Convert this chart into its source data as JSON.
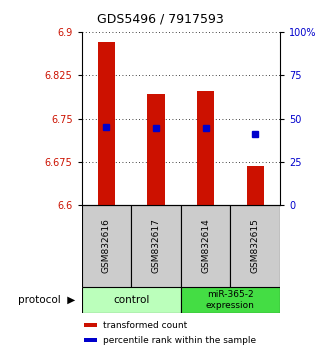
{
  "title": "GDS5496 / 7917593",
  "samples": [
    "GSM832616",
    "GSM832617",
    "GSM832614",
    "GSM832615"
  ],
  "bar_tops": [
    6.882,
    6.793,
    6.798,
    6.668
  ],
  "bar_bottom": 6.6,
  "percentile_values": [
    6.736,
    6.734,
    6.733,
    6.723
  ],
  "ylim": [
    6.6,
    6.9
  ],
  "yticks_left": [
    6.6,
    6.675,
    6.75,
    6.825,
    6.9
  ],
  "yticks_right": [
    0,
    25,
    50,
    75,
    100
  ],
  "ytick_right_labels": [
    "0",
    "25",
    "50",
    "75",
    "100%"
  ],
  "bar_color": "#cc1100",
  "percentile_color": "#0000cc",
  "bar_width": 0.35,
  "ctrl_color": "#bbffbb",
  "mir_color": "#44dd44",
  "legend_bar_label": "transformed count",
  "legend_pct_label": "percentile rank within the sample",
  "label_bg_color": "#cccccc",
  "bg_color": "#ffffff"
}
